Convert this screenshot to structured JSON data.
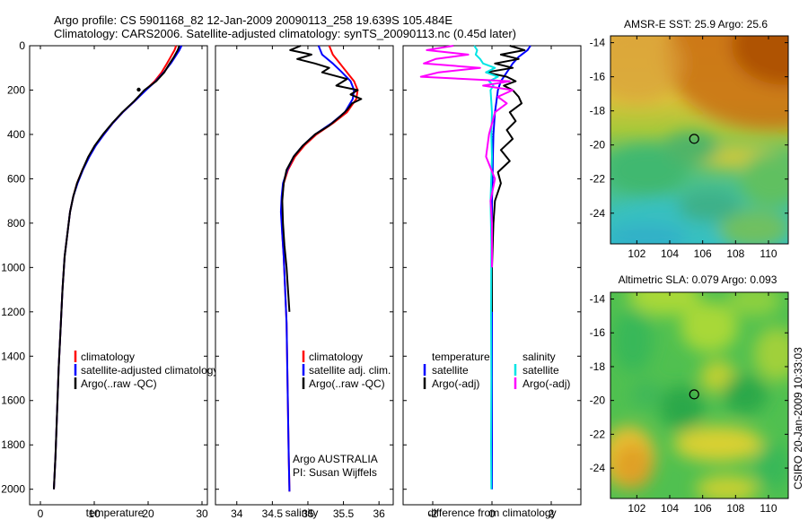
{
  "header": {
    "line1": "Argo profile: CS 5901168_82 12-Jan-2009 20090113_258 19.639S 105.484E",
    "line2": "Climatology: CARS2006. Satellite-adjusted climatology: synTS_20090113.nc (0.45d later)"
  },
  "side_label": "CSIRO 20-Jan-2009 10:33:03",
  "colors": {
    "climatology": "#ff0000",
    "satellite": "#0000ff",
    "argo": "#000000",
    "cyan": "#00e5e5",
    "magenta": "#ff00ff",
    "marker": "#000000"
  },
  "chart_data": [
    {
      "type": "line",
      "name": "temperature",
      "xlabel": "temperature",
      "ylabel": "",
      "xlim": [
        -2,
        31
      ],
      "ylim": [
        2070,
        0
      ],
      "xticks": [
        0,
        10,
        20,
        30
      ],
      "yticks": [
        0,
        200,
        400,
        600,
        800,
        1000,
        1200,
        1400,
        1600,
        1800,
        2000
      ],
      "legend": {
        "placement": "lower-right",
        "entries": [
          {
            "label": "climatology",
            "color": "#ff0000"
          },
          {
            "label": "satellite-adjusted climatology",
            "color": "#0000ff"
          },
          {
            "label": "Argo(..raw -QC)",
            "color": "#000000"
          }
        ]
      },
      "series": [
        {
          "name": "climatology",
          "color": "#ff0000",
          "x": [
            25.2,
            24.9,
            24.2,
            23.5,
            22.5,
            21.2,
            19.5,
            17.5,
            15.3,
            13.4,
            11.8,
            10.2,
            9.0,
            7.8,
            6.8,
            6.1,
            5.5,
            5.0,
            4.5,
            4.1,
            3.8,
            3.4,
            3.1,
            2.8,
            2.5
          ],
          "y": [
            0,
            20,
            50,
            80,
            120,
            160,
            200,
            250,
            300,
            350,
            400,
            450,
            500,
            560,
            620,
            680,
            750,
            850,
            950,
            1100,
            1250,
            1450,
            1650,
            1850,
            2000
          ]
        },
        {
          "name": "satellite-adjusted climatology",
          "color": "#0000ff",
          "x": [
            26.2,
            25.8,
            25.0,
            24.2,
            22.9,
            21.4,
            19.6,
            17.5,
            15.3,
            13.4,
            11.8,
            10.3,
            9.1,
            7.9,
            6.9,
            6.1,
            5.5,
            5.0,
            4.5,
            4.1,
            3.8,
            3.4,
            3.1,
            2.8,
            2.5
          ],
          "y": [
            0,
            20,
            50,
            80,
            120,
            160,
            200,
            250,
            300,
            350,
            400,
            450,
            500,
            560,
            620,
            680,
            750,
            850,
            950,
            1100,
            1250,
            1450,
            1650,
            1850,
            2000
          ]
        },
        {
          "name": "Argo",
          "color": "#000000",
          "x": [
            25.8,
            25.5,
            24.8,
            24.0,
            23.0,
            21.5,
            19.3,
            17.4,
            15.2,
            13.3,
            11.6,
            10.1,
            8.9,
            7.8,
            6.8,
            6.1,
            5.5,
            5.0,
            4.5,
            4.1,
            3.8,
            3.4,
            3.1,
            2.8,
            2.5
          ],
          "y": [
            0,
            20,
            50,
            80,
            120,
            160,
            200,
            250,
            300,
            350,
            400,
            450,
            500,
            560,
            620,
            680,
            750,
            850,
            950,
            1100,
            1250,
            1450,
            1650,
            1850,
            2000
          ]
        }
      ]
    },
    {
      "type": "line",
      "name": "salinity",
      "xlabel": "salinity",
      "xlim": [
        33.7,
        36.2
      ],
      "ylim": [
        2070,
        0
      ],
      "xticks": [
        34,
        34.5,
        35,
        35.5,
        36
      ],
      "yticks": [
        0,
        200,
        400,
        600,
        800,
        1000,
        1200,
        1400,
        1600,
        1800,
        2000
      ],
      "legend": {
        "placement": "lower-right",
        "entries": [
          {
            "label": "climatology",
            "color": "#ff0000"
          },
          {
            "label": "satellite adj. clim.",
            "color": "#0000ff"
          },
          {
            "label": "Argo(..raw -QC)",
            "color": "#000000"
          }
        ]
      },
      "annotation": [
        "Argo AUSTRALIA",
        "PI: Susan Wijffels"
      ],
      "series": [
        {
          "name": "climatology",
          "color": "#ff0000",
          "x": [
            35.3,
            35.35,
            35.45,
            35.55,
            35.65,
            35.7,
            35.68,
            35.55,
            35.35,
            35.12,
            34.95,
            34.82,
            34.72,
            34.66,
            34.64,
            34.63,
            34.64,
            34.66,
            34.68,
            34.7,
            34.71,
            34.72,
            34.73,
            34.74,
            34.74
          ],
          "y": [
            0,
            40,
            80,
            120,
            160,
            200,
            240,
            300,
            350,
            400,
            450,
            500,
            560,
            620,
            680,
            750,
            850,
            950,
            1100,
            1250,
            1450,
            1650,
            1850,
            2000,
            2010
          ]
        },
        {
          "name": "satellite adj. clim.",
          "color": "#0000ff",
          "x": [
            35.15,
            35.2,
            35.35,
            35.48,
            35.6,
            35.65,
            35.63,
            35.52,
            35.33,
            35.1,
            34.93,
            34.8,
            34.71,
            34.65,
            34.63,
            34.62,
            34.64,
            34.66,
            34.68,
            34.7,
            34.71,
            34.72,
            34.73,
            34.74,
            34.74
          ],
          "y": [
            0,
            40,
            80,
            120,
            160,
            200,
            240,
            300,
            350,
            400,
            450,
            500,
            560,
            620,
            680,
            750,
            850,
            950,
            1100,
            1250,
            1450,
            1650,
            1850,
            2000,
            2010
          ]
        },
        {
          "name": "Argo",
          "color": "#000000",
          "x": [
            34.9,
            34.75,
            35.05,
            34.85,
            35.1,
            35.3,
            35.2,
            35.55,
            35.4,
            35.7,
            35.6,
            35.75,
            35.62,
            35.55,
            35.45,
            35.3,
            35.1,
            34.93,
            34.8,
            34.7,
            34.66,
            34.64,
            34.65,
            34.67,
            34.7,
            34.72,
            34.74
          ],
          "y": [
            0,
            20,
            40,
            60,
            80,
            100,
            120,
            150,
            180,
            200,
            220,
            240,
            260,
            290,
            320,
            360,
            400,
            450,
            500,
            560,
            620,
            700,
            800,
            900,
            1000,
            1100,
            1200
          ]
        }
      ]
    },
    {
      "type": "line",
      "name": "difference",
      "xlabel": "difference from climatology",
      "xlim": [
        -3,
        3
      ],
      "ylim": [
        2070,
        0
      ],
      "xticks": [
        -2,
        0,
        2
      ],
      "yticks": [
        0,
        200,
        400,
        600,
        800,
        1000,
        1200,
        1400,
        1600,
        1800,
        2000
      ],
      "legend": {
        "placement": "lower-center",
        "entries": [
          {
            "label": "temperature",
            "color": "#000000",
            "group": "header"
          },
          {
            "label": "satellite",
            "color": "#0000ff"
          },
          {
            "label": "Argo(-adj)",
            "color": "#000000"
          },
          {
            "label": "salinity",
            "color": "#000000",
            "group": "header"
          },
          {
            "label": "satellite",
            "color": "#00e5e5"
          },
          {
            "label": "Argo(-adj)",
            "color": "#ff00ff"
          }
        ]
      },
      "series": [
        {
          "name": "temperature satellite",
          "color": "#0000ff",
          "x": [
            1.3,
            1.2,
            0.9,
            0.7,
            0.5,
            0.3,
            0.2,
            0.15,
            0.1,
            0.05,
            0.03,
            0.02,
            0,
            0,
            0,
            0,
            0,
            0
          ],
          "y": [
            0,
            20,
            50,
            80,
            120,
            160,
            200,
            250,
            300,
            400,
            500,
            600,
            700,
            900,
            1200,
            1500,
            1800,
            2000
          ]
        },
        {
          "name": "temperature Argo(-adj)",
          "color": "#000000",
          "x": [
            0.6,
            1.1,
            0.3,
            0.9,
            0.1,
            0.7,
            -0.2,
            0.5,
            0.8,
            0.4,
            0.7,
            0.9,
            1.0,
            0.6,
            0.8,
            0.5,
            0.7,
            0.3,
            0.6,
            0.2,
            0.3,
            0.1,
            0.05,
            0,
            0
          ],
          "y": [
            0,
            20,
            40,
            60,
            80,
            100,
            120,
            140,
            160,
            180,
            200,
            230,
            260,
            300,
            340,
            380,
            420,
            470,
            520,
            570,
            620,
            700,
            800,
            1000,
            1200
          ]
        },
        {
          "name": "salinity satellite",
          "color": "#00e5e5",
          "x": [
            -0.6,
            -0.5,
            -0.55,
            -0.4,
            -0.3,
            0.1,
            -0.2,
            0.2,
            -0.1,
            0.05,
            -0.05,
            0,
            -0.02,
            0,
            -0.05,
            -0.02,
            -0.03,
            -0.02,
            -0.03,
            -0.02
          ],
          "y": [
            0,
            20,
            40,
            60,
            80,
            100,
            120,
            140,
            160,
            180,
            200,
            300,
            400,
            500,
            700,
            900,
            1200,
            1500,
            1800,
            2000
          ]
        },
        {
          "name": "salinity Argo(-adj)",
          "color": "#ff00ff",
          "x": [
            -1.3,
            -2.2,
            -0.8,
            -1.9,
            -2.3,
            -0.4,
            -1.8,
            -2.4,
            0.6,
            -0.3,
            0.7,
            0.2,
            0.5,
            0.1,
            -0.1,
            -0.2,
            0.1,
            -0.05,
            0,
            0
          ],
          "y": [
            0,
            20,
            40,
            60,
            80,
            100,
            120,
            140,
            160,
            180,
            200,
            230,
            260,
            300,
            400,
            500,
            600,
            700,
            800,
            1000
          ]
        }
      ]
    },
    {
      "type": "heatmap",
      "name": "sst",
      "title": "AMSR-E SST: 25.9 Argo: 25.6",
      "xlim": [
        100.4,
        111.2
      ],
      "ylim": [
        -25.8,
        -13.6
      ],
      "xticks": [
        102,
        104,
        106,
        108,
        110
      ],
      "yticks": [
        -14,
        -16,
        -18,
        -20,
        -22,
        -24
      ],
      "marker": {
        "lon": 105.484,
        "lat": -19.639
      }
    },
    {
      "type": "heatmap",
      "name": "sla",
      "title": "Altimetric SLA: 0.079 Argo: 0.093",
      "xlim": [
        100.4,
        111.2
      ],
      "ylim": [
        -25.8,
        -13.6
      ],
      "xticks": [
        102,
        104,
        106,
        108,
        110
      ],
      "yticks": [
        -14,
        -16,
        -18,
        -20,
        -22,
        -24
      ],
      "marker": {
        "lon": 105.484,
        "lat": -19.639
      }
    }
  ]
}
